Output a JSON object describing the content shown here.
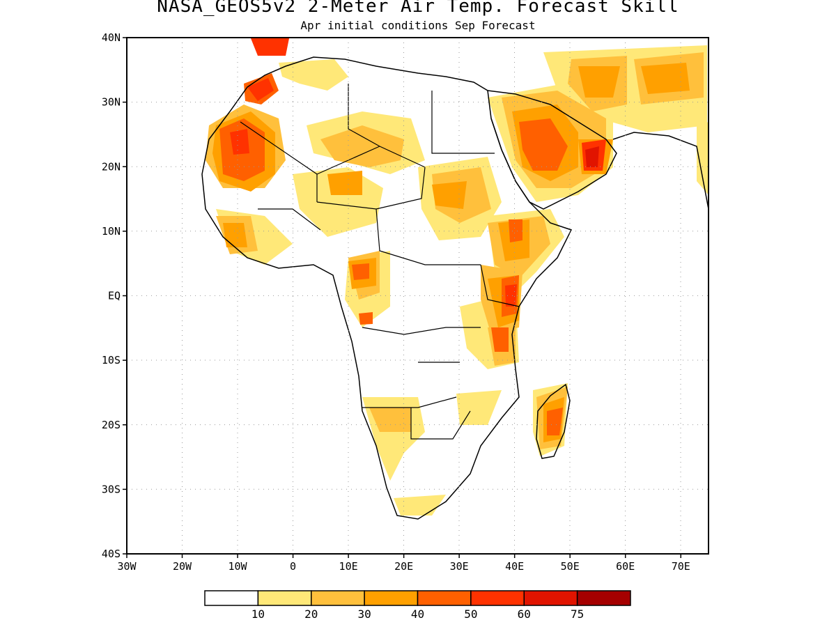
{
  "title": "NASA_GEOS5v2 2-Meter Air Temp. Forecast Skill",
  "subtitle": "Apr initial conditions  Sep Forecast",
  "map": {
    "lat_labels": [
      "40N",
      "30N",
      "20N",
      "10N",
      "EQ",
      "10S",
      "20S",
      "30S",
      "40S"
    ],
    "lon_labels": [
      "30W",
      "20W",
      "10W",
      "0",
      "10E",
      "20E",
      "30E",
      "40E",
      "50E",
      "60E",
      "70E"
    ],
    "lat_range": [
      -40,
      40
    ],
    "lon_range": [
      -30,
      75
    ],
    "grid": "dotted"
  },
  "colorbar": {
    "labels": [
      "10",
      "20",
      "30",
      "40",
      "50",
      "60",
      "75"
    ],
    "colors": [
      "#ffffff",
      "#ffe878",
      "#ffc03c",
      "#ffa000",
      "#ff6000",
      "#ff3200",
      "#e11400",
      "#a50000"
    ]
  }
}
